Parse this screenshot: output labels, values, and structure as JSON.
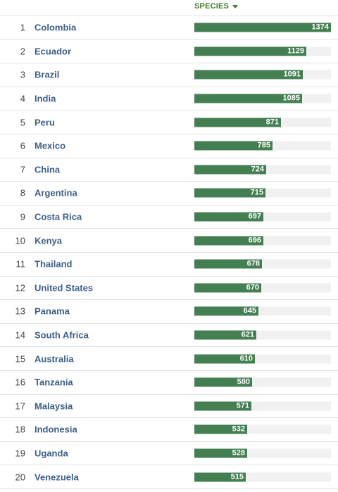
{
  "header": {
    "sort_label": "SPECIES",
    "sort_icon": "caret-down-icon"
  },
  "colors": {
    "bar": "#447f52",
    "track": "#f1f1f1",
    "header": "#3f7a2a",
    "country": "#3c5f86"
  },
  "max_value": 1374,
  "rows": [
    {
      "rank": "1",
      "country": "Colombia",
      "value": 1374
    },
    {
      "rank": "2",
      "country": "Ecuador",
      "value": 1129
    },
    {
      "rank": "3",
      "country": "Brazil",
      "value": 1091
    },
    {
      "rank": "4",
      "country": "India",
      "value": 1085
    },
    {
      "rank": "5",
      "country": "Peru",
      "value": 871
    },
    {
      "rank": "6",
      "country": "Mexico",
      "value": 785
    },
    {
      "rank": "7",
      "country": "China",
      "value": 724
    },
    {
      "rank": "8",
      "country": "Argentina",
      "value": 715
    },
    {
      "rank": "9",
      "country": "Costa Rica",
      "value": 697
    },
    {
      "rank": "10",
      "country": "Kenya",
      "value": 696
    },
    {
      "rank": "11",
      "country": "Thailand",
      "value": 678
    },
    {
      "rank": "12",
      "country": "United States",
      "value": 670
    },
    {
      "rank": "13",
      "country": "Panama",
      "value": 645
    },
    {
      "rank": "14",
      "country": "South Africa",
      "value": 621
    },
    {
      "rank": "15",
      "country": "Australia",
      "value": 610
    },
    {
      "rank": "16",
      "country": "Tanzania",
      "value": 580
    },
    {
      "rank": "17",
      "country": "Malaysia",
      "value": 571
    },
    {
      "rank": "18",
      "country": "Indonesia",
      "value": 532
    },
    {
      "rank": "19",
      "country": "Uganda",
      "value": 528
    },
    {
      "rank": "20",
      "country": "Venezuela",
      "value": 515
    }
  ]
}
